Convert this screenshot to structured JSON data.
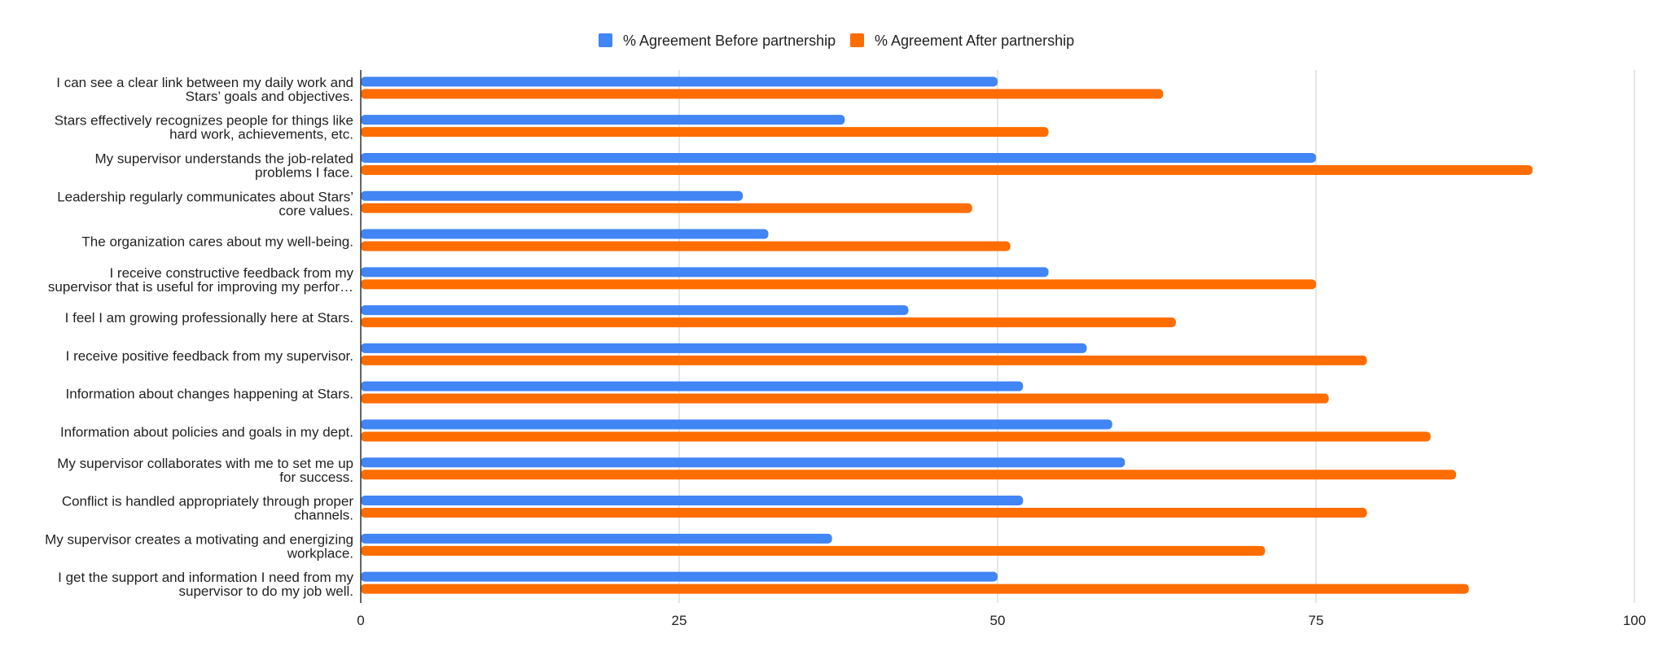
{
  "chart_data": {
    "type": "bar",
    "orientation": "horizontal",
    "categories": [
      [
        "I can see a clear link between my daily work and",
        "Stars’ goals and objectives."
      ],
      [
        "Stars effectively recognizes people for things like",
        "hard work, achievements, etc."
      ],
      [
        "My supervisor understands the job-related",
        "problems I face."
      ],
      [
        "Leadership regularly communicates about Stars’",
        "core values."
      ],
      [
        "The organization cares about my well-being."
      ],
      [
        "I receive constructive feedback from my",
        "supervisor that is useful for improving my perfor…"
      ],
      [
        "I feel I am growing professionally here at Stars."
      ],
      [
        "I receive positive feedback from my supervisor."
      ],
      [
        "Information about changes happening at Stars."
      ],
      [
        "Information about policies and goals in my dept."
      ],
      [
        "My supervisor collaborates with me to set me up",
        "for success."
      ],
      [
        "Conflict is handled appropriately through proper",
        "channels."
      ],
      [
        "My supervisor creates a motivating and energizing",
        "workplace."
      ],
      [
        "I get the support and information I need from my",
        "supervisor to do my job well."
      ]
    ],
    "series": [
      {
        "name": "% Agreement Before partnership",
        "color": "#4285f4",
        "values": [
          50,
          38,
          75,
          30,
          32,
          54,
          43,
          57,
          52,
          59,
          60,
          52,
          37,
          50
        ]
      },
      {
        "name": "% Agreement After partnership",
        "color": "#ff6d01",
        "values": [
          63,
          54,
          92,
          48,
          51,
          75,
          64,
          79,
          76,
          84,
          86,
          79,
          71,
          87
        ]
      }
    ],
    "xlim": [
      0,
      100
    ],
    "xticks": [
      0,
      25,
      50,
      75,
      100
    ],
    "grid": true,
    "legend_position": "top-center"
  }
}
